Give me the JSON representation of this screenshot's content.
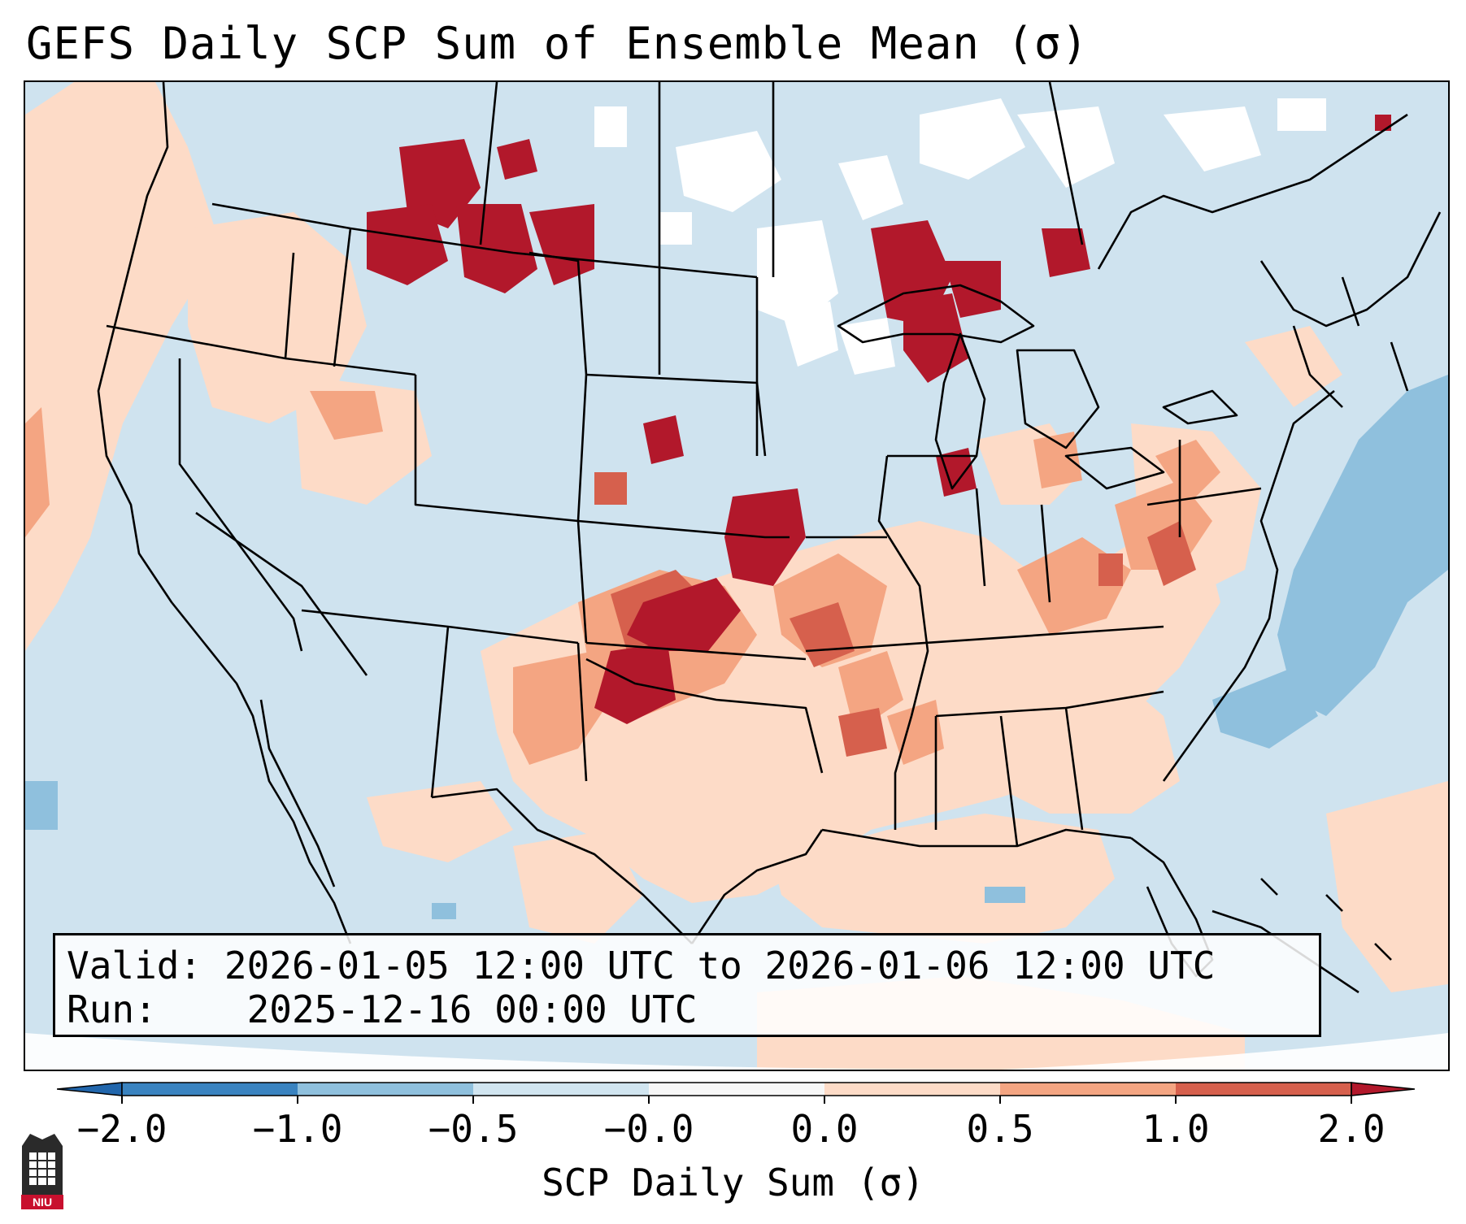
{
  "title": "GEFS Daily SCP Sum of Ensemble Mean (σ)",
  "info": {
    "valid_label": "Valid:",
    "valid_value": "2026-01-05 12:00 UTC to 2026-01-06 12:00 UTC",
    "run_label": "Run:",
    "run_value": "2025-12-16 00:00 UTC"
  },
  "colorbar": {
    "label": "SCP Daily Sum (σ)",
    "ticks": [
      "−2.0",
      "−1.0",
      "−0.5",
      "−0.0",
      "0.0",
      "0.5",
      "1.0",
      "2.0"
    ],
    "colors": [
      "#3a83c0",
      "#8fc0dd",
      "#d1e5f0",
      "#f7f7f7",
      "#fddbc7",
      "#f4a582",
      "#d6604d",
      "#b2182b"
    ],
    "extend_low_color": "#2166ac",
    "extend_high_color": "#b2182b"
  },
  "map_colors": {
    "base_background": "#cfe3ef",
    "near_zero_positive": "#fddbc7",
    "moderate_positive": "#f4a582",
    "high_positive": "#d6604d",
    "very_high_positive": "#b2182b",
    "near_zero_white": "#ffffff",
    "moderate_negative": "#8fc0dd",
    "outline": "#000000"
  },
  "logo": {
    "text": "NIU",
    "color": "#c8102e"
  }
}
